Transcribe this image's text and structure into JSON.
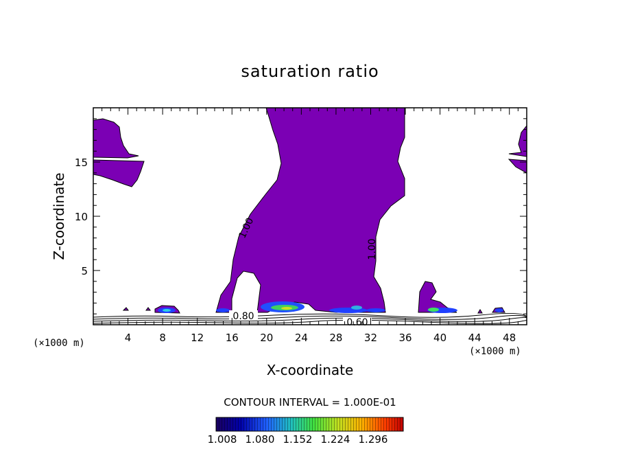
{
  "chart_data": {
    "type": "contour",
    "title": "saturation ratio",
    "xlabel": "X-coordinate",
    "ylabel": "Z-coordinate",
    "x_unit": "(×1000 m)",
    "z_unit": "(×1000 m)",
    "xlim": [
      0,
      50
    ],
    "ylim": [
      0,
      20
    ],
    "x_ticks": [
      4,
      8,
      12,
      16,
      20,
      24,
      28,
      32,
      36,
      40,
      44,
      48
    ],
    "y_ticks": [
      5,
      10,
      15
    ],
    "contour_interval": "CONTOUR INTERVAL = 1.000E-01",
    "contour_labels": [
      "1.00",
      "1.00",
      "0.80",
      "0.60"
    ],
    "colorbar_ticks": [
      "1.008",
      "1.080",
      "1.152",
      "1.224",
      "1.296"
    ],
    "fill_color": "#7b00b4",
    "colormap": [
      "#1a0060",
      "#0000aa",
      "#2060ff",
      "#20c0c0",
      "#40e040",
      "#c0e020",
      "#ffb000",
      "#ff4000",
      "#c00000"
    ]
  }
}
